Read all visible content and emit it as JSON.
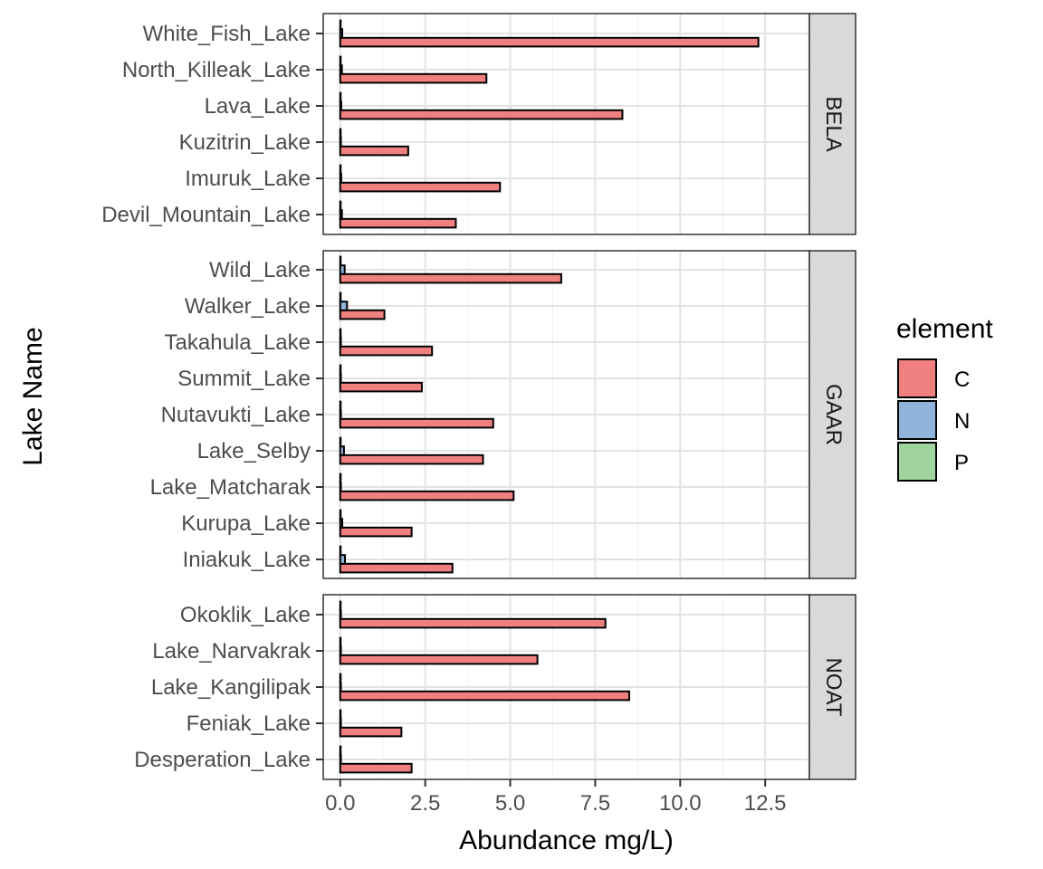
{
  "chart_data": {
    "type": "bar",
    "orientation": "horizontal",
    "xlabel": "Abundance mg/L)",
    "ylabel": "Lake Name",
    "xlim": [
      -0.5,
      13.8
    ],
    "xticks": [
      0,
      2.5,
      5,
      7.5,
      10,
      12.5
    ],
    "xtick_labels": [
      "0.0",
      "2.5",
      "5.0",
      "7.5",
      "10.0",
      "12.5"
    ],
    "grid": true,
    "legend": {
      "title": "element",
      "position": "right",
      "entries": [
        {
          "name": "C",
          "color": "#F08080"
        },
        {
          "name": "N",
          "color": "#8FB3D9"
        },
        {
          "name": "P",
          "color": "#9FD49F"
        }
      ]
    },
    "panels": [
      {
        "label": "BELA",
        "categories": [
          "White_Fish_Lake",
          "North_Killeak_Lake",
          "Lava_Lake",
          "Kuzitrin_Lake",
          "Imuruk_Lake",
          "Devil_Mountain_Lake"
        ],
        "series": [
          {
            "name": "C",
            "values": [
              12.3,
              4.3,
              8.3,
              2.0,
              4.7,
              3.4
            ]
          },
          {
            "name": "N",
            "values": [
              0.06,
              0.05,
              0.03,
              0.02,
              0.03,
              0.05
            ]
          },
          {
            "name": "P",
            "values": [
              0.005,
              0.005,
              0.005,
              0.005,
              0.005,
              0.005
            ]
          }
        ]
      },
      {
        "label": "GAAR",
        "categories": [
          "Wild_Lake",
          "Walker_Lake",
          "Takahula_Lake",
          "Summit_Lake",
          "Nutavukti_Lake",
          "Lake_Selby",
          "Lake_Matcharak",
          "Kurupa_Lake",
          "Iniakuk_Lake"
        ],
        "series": [
          {
            "name": "C",
            "values": [
              6.5,
              1.3,
              2.7,
              2.4,
              4.5,
              4.2,
              5.1,
              2.1,
              3.3
            ]
          },
          {
            "name": "N",
            "values": [
              0.13,
              0.2,
              0.02,
              0.02,
              0.02,
              0.11,
              0.02,
              0.06,
              0.14
            ]
          },
          {
            "name": "P",
            "values": [
              0.005,
              0.005,
              0.005,
              0.005,
              0.005,
              0.005,
              0.005,
              0.005,
              0.005
            ]
          }
        ]
      },
      {
        "label": "NOAT",
        "categories": [
          "Okoklik_Lake",
          "Lake_Narvakrak",
          "Lake_Kangilipak",
          "Feniak_Lake",
          "Desperation_Lake"
        ],
        "series": [
          {
            "name": "C",
            "values": [
              7.8,
              5.8,
              8.5,
              1.8,
              2.1
            ]
          },
          {
            "name": "N",
            "values": [
              0.02,
              0.02,
              0.02,
              0.02,
              0.02
            ]
          },
          {
            "name": "P",
            "values": [
              0.005,
              0.005,
              0.005,
              0.005,
              0.005
            ]
          }
        ]
      }
    ]
  }
}
